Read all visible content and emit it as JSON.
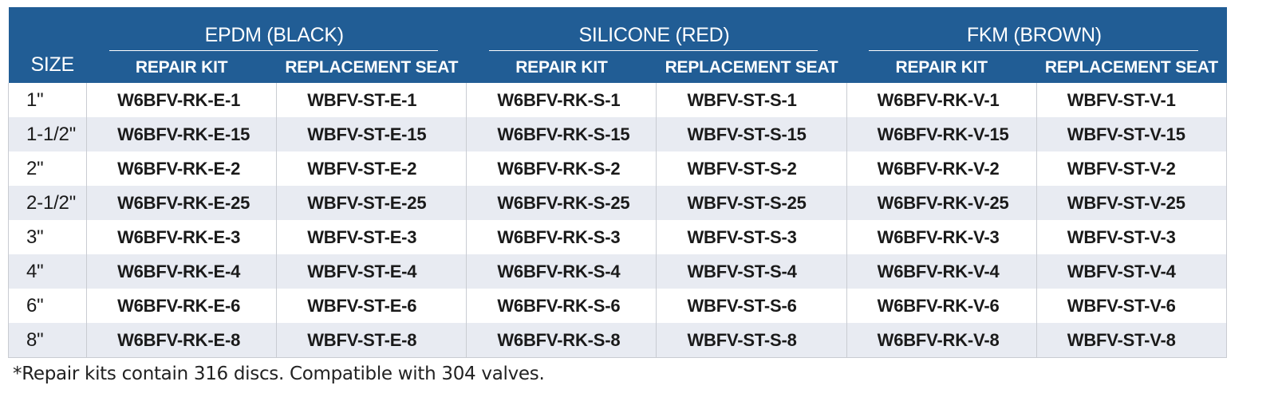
{
  "table": {
    "size_header": "SIZE",
    "materials": [
      "EPDM (BLACK)",
      "SILICONE (RED)",
      "FKM (BROWN)"
    ],
    "sub_headers": [
      "REPAIR KIT",
      "REPLACEMENT SEAT",
      "REPAIR KIT",
      "REPLACEMENT SEAT",
      "REPAIR KIT",
      "REPLACEMENT SEAT"
    ],
    "rows": [
      [
        "1\"",
        "W6BFV-RK-E-1",
        "WBFV-ST-E-1",
        "W6BFV-RK-S-1",
        "WBFV-ST-S-1",
        "W6BFV-RK-V-1",
        "WBFV-ST-V-1"
      ],
      [
        "1-1/2\"",
        "W6BFV-RK-E-15",
        "WBFV-ST-E-15",
        "W6BFV-RK-S-15",
        "WBFV-ST-S-15",
        "W6BFV-RK-V-15",
        "WBFV-ST-V-15"
      ],
      [
        "2\"",
        "W6BFV-RK-E-2",
        "WBFV-ST-E-2",
        "W6BFV-RK-S-2",
        "WBFV-ST-S-2",
        "W6BFV-RK-V-2",
        "WBFV-ST-V-2"
      ],
      [
        "2-1/2\"",
        "W6BFV-RK-E-25",
        "WBFV-ST-E-25",
        "W6BFV-RK-S-25",
        "WBFV-ST-S-25",
        "W6BFV-RK-V-25",
        "WBFV-ST-V-25"
      ],
      [
        "3\"",
        "W6BFV-RK-E-3",
        "WBFV-ST-E-3",
        "W6BFV-RK-S-3",
        "WBFV-ST-S-3",
        "W6BFV-RK-V-3",
        "WBFV-ST-V-3"
      ],
      [
        "4\"",
        "W6BFV-RK-E-4",
        "WBFV-ST-E-4",
        "W6BFV-RK-S-4",
        "WBFV-ST-S-4",
        "W6BFV-RK-V-4",
        "WBFV-ST-V-4"
      ],
      [
        "6\"",
        "W6BFV-RK-E-6",
        "WBFV-ST-E-6",
        "W6BFV-RK-S-6",
        "WBFV-ST-S-6",
        "W6BFV-RK-V-6",
        "WBFV-ST-V-6"
      ],
      [
        "8\"",
        "W6BFV-RK-E-8",
        "WBFV-ST-E-8",
        "W6BFV-RK-S-8",
        "WBFV-ST-S-8",
        "W6BFV-RK-V-8",
        "WBFV-ST-V-8"
      ]
    ]
  },
  "footnote": "*Repair kits contain 316 discs. Compatible with 304 valves.",
  "colors": {
    "header_bg": "#215d95",
    "stripe_bg": "#e8ebf2",
    "header_text": "#ffffff"
  }
}
